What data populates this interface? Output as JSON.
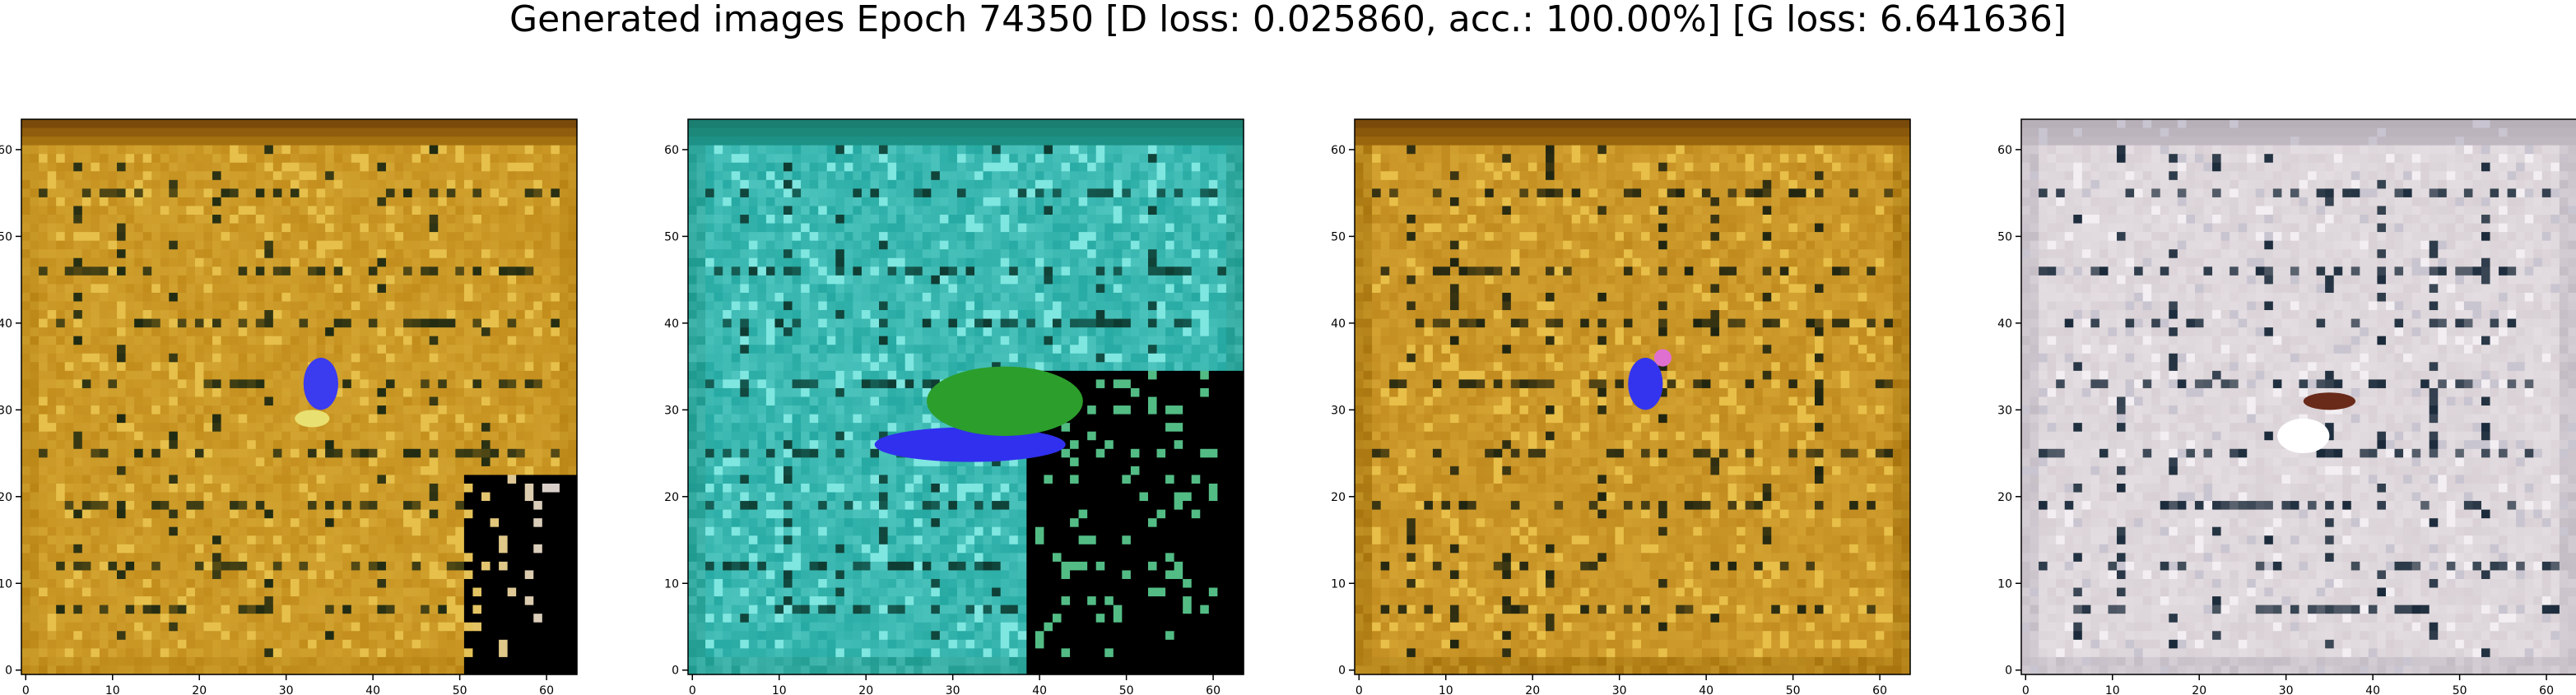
{
  "figure": {
    "title": "Generated images Epoch 74350 [D loss: 0.025860, acc.: 100.00%] [G loss: 6.641636]"
  },
  "chart_data": [
    {
      "type": "heatmap",
      "title": "",
      "xlabel": "",
      "ylabel": "",
      "xlim": [
        -0.5,
        63.5
      ],
      "ylim": [
        63.5,
        -0.5
      ],
      "xticks": [
        0,
        10,
        20,
        30,
        40,
        50,
        60
      ],
      "yticks": [
        0,
        10,
        20,
        30,
        40,
        50,
        60
      ],
      "grid": false,
      "palette": {
        "base": "#c38d1c",
        "dark": "#1f2a12",
        "light": "#e6c04a",
        "edge": "#b98414",
        "topband": "#7a4a0a",
        "fade": "#d9cfc8",
        "accent": "#3b3bf0",
        "accent2": "#e6d35a"
      },
      "blobs": [
        {
          "x": 34,
          "y": 33,
          "rx": 2,
          "ry": 3,
          "color": "#3b3bf0"
        },
        {
          "x": 33,
          "y": 29,
          "rx": 2,
          "ry": 1,
          "color": "#e8e070"
        }
      ]
    },
    {
      "type": "heatmap",
      "title": "",
      "xlabel": "",
      "ylabel": "",
      "xlim": [
        -0.5,
        63.5
      ],
      "ylim": [
        63.5,
        -0.5
      ],
      "xticks": [
        0,
        10,
        20,
        30,
        40,
        50,
        60
      ],
      "yticks": [
        0,
        10,
        20,
        30,
        40,
        50,
        60
      ],
      "grid": false,
      "palette": {
        "base": "#25a9a2",
        "dark": "#0e3a30",
        "light": "#7fe6e0",
        "edge": "#1f9a8f",
        "topband": "#1a7f70",
        "fade": "#2f9a3a",
        "accent": "#3030ee",
        "accent2": "#2c9e2c"
      },
      "blobs": [
        {
          "x": 32,
          "y": 26,
          "rx": 11,
          "ry": 2,
          "color": "#3030ee"
        },
        {
          "x": 36,
          "y": 31,
          "rx": 9,
          "ry": 4,
          "color": "#2c9e2c"
        }
      ]
    },
    {
      "type": "heatmap",
      "title": "",
      "xlabel": "",
      "ylabel": "",
      "xlim": [
        -0.5,
        63.5
      ],
      "ylim": [
        63.5,
        -0.5
      ],
      "xticks": [
        0,
        10,
        20,
        30,
        40,
        50,
        60
      ],
      "yticks": [
        0,
        10,
        20,
        30,
        40,
        50,
        60
      ],
      "grid": false,
      "palette": {
        "base": "#c18a1e",
        "dark": "#1f2410",
        "light": "#e8bf48",
        "edge": "#a8740e",
        "topband": "#7a4a0a",
        "fade": "#d07a2a",
        "accent": "#3434ee",
        "accent2": "#e85a2a"
      },
      "blobs": [
        {
          "x": 33,
          "y": 33,
          "rx": 2,
          "ry": 3,
          "color": "#3434ee"
        },
        {
          "x": 35,
          "y": 36,
          "rx": 1,
          "ry": 1,
          "color": "#e070d0"
        }
      ]
    },
    {
      "type": "heatmap",
      "title": "",
      "xlabel": "",
      "ylabel": "",
      "xlim": [
        -0.5,
        63.5
      ],
      "ylim": [
        63.5,
        -0.5
      ],
      "xticks": [
        0,
        10,
        20,
        30,
        40,
        50,
        60
      ],
      "yticks": [
        0,
        10,
        20,
        30,
        40,
        50,
        60
      ],
      "grid": false,
      "palette": {
        "base": "#d8d0d4",
        "dark": "#1a2a3a",
        "light": "#f2eef2",
        "edge": "#c4bcc4",
        "topband": "#b8b0b8",
        "fade": "#c8c4d0",
        "accent": "#6a2a1a",
        "accent2": "#ffffff"
      },
      "blobs": [
        {
          "x": 35,
          "y": 31,
          "rx": 3,
          "ry": 1,
          "color": "#6a2a1a"
        },
        {
          "x": 32,
          "y": 27,
          "rx": 3,
          "ry": 2,
          "color": "#ffffff"
        }
      ]
    }
  ]
}
